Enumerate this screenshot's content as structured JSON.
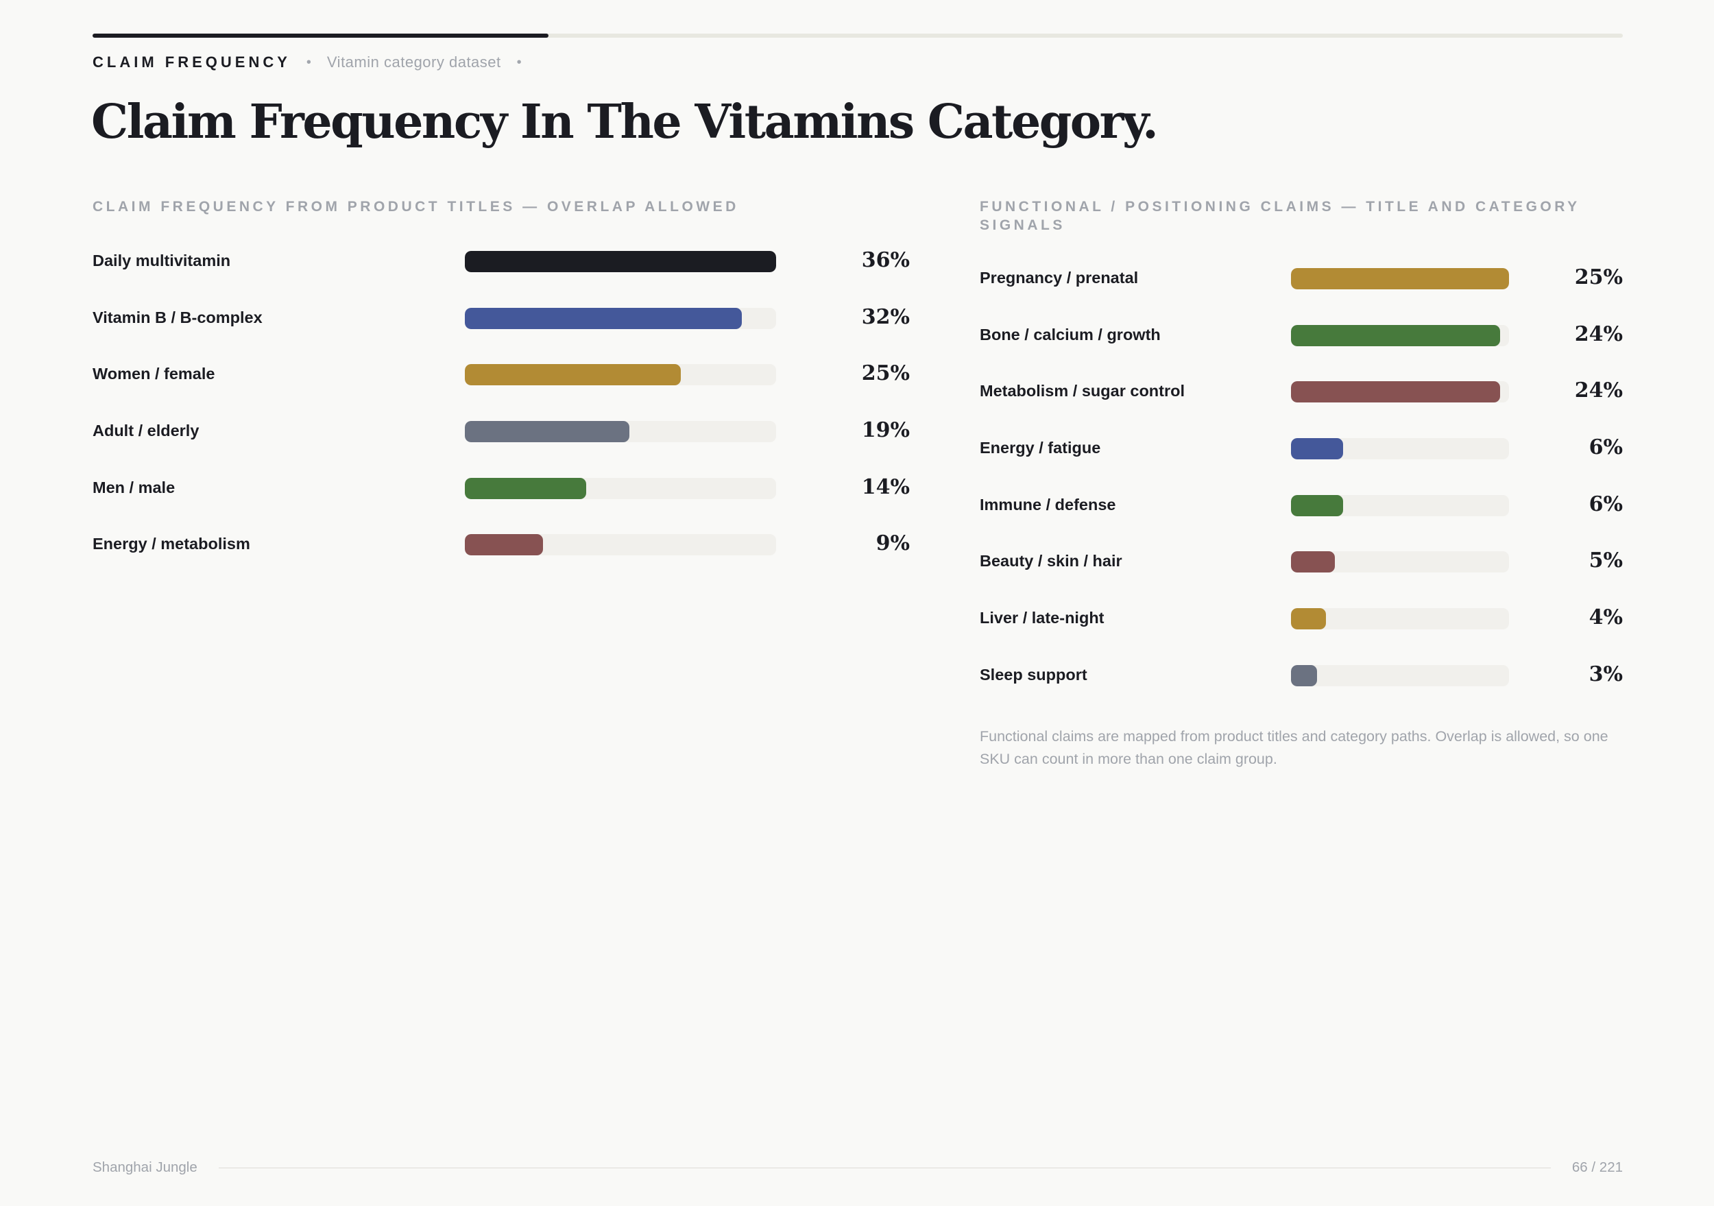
{
  "header": {
    "progress": 0.298,
    "kicker": "CLAIM FREQUENCY",
    "separator": "•",
    "subtitle": "Vitamin category dataset",
    "title": "Claim Frequency In The Vitamins Category."
  },
  "chart_data": [
    {
      "type": "bar",
      "orientation": "horizontal",
      "title": "CLAIM FREQUENCY FROM PRODUCT TITLES — OVERLAP ALLOWED",
      "xlim": [
        0,
        36
      ],
      "categories": [
        "Daily multivitamin",
        "Vitamin B / B-complex",
        "Women / female",
        "Adult / elderly",
        "Men / male",
        "Energy / metabolism"
      ],
      "values": [
        36,
        32,
        25,
        19,
        14,
        9
      ],
      "value_labels": [
        "36%",
        "32%",
        "25%",
        "19%",
        "14%",
        "9%"
      ],
      "colors": [
        "#1b1c22",
        "#44589a",
        "#b28b34",
        "#6b7281",
        "#477a3c",
        "#875252"
      ]
    },
    {
      "type": "bar",
      "orientation": "horizontal",
      "title": "FUNCTIONAL / POSITIONING CLAIMS — TITLE AND CATEGORY SIGNALS",
      "xlim": [
        0,
        25
      ],
      "categories": [
        "Pregnancy / prenatal",
        "Bone / calcium / growth",
        "Metabolism / sugar control",
        "Energy / fatigue",
        "Immune / defense",
        "Beauty / skin / hair",
        "Liver / late-night",
        "Sleep support"
      ],
      "values": [
        25,
        24,
        24,
        6,
        6,
        5,
        4,
        3
      ],
      "value_labels": [
        "25%",
        "24%",
        "24%",
        "6%",
        "6%",
        "5%",
        "4%",
        "3%"
      ],
      "colors": [
        "#b28b34",
        "#477a3c",
        "#875252",
        "#44589a",
        "#477a3c",
        "#875252",
        "#b28b34",
        "#6b7281"
      ],
      "footnote": "Functional claims are mapped from product titles and category paths. Overlap is allowed, so one SKU can count in more than one claim group."
    }
  ],
  "footer": {
    "left": "Shanghai Jungle",
    "page": "66 / 221"
  }
}
